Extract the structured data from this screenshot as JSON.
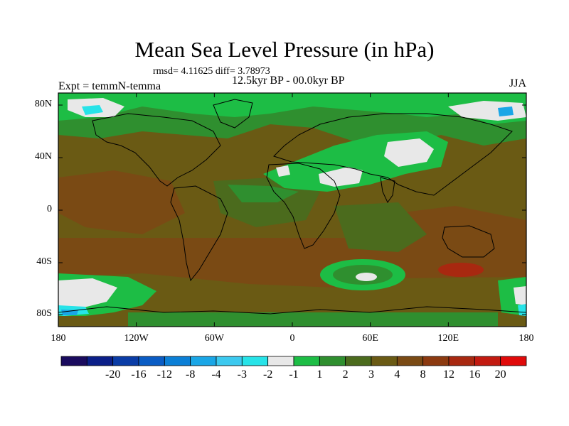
{
  "title": "Mean Sea Level Pressure (in hPa)",
  "stats": "rmsd= 4.11625  diff= 3.78973",
  "period": "12.5kyr BP - 00.0kyr BP",
  "experiment": "Expt = temmN-temma",
  "season": "JJA",
  "lat_ticks": [
    "80N",
    "40N",
    "0",
    "40S",
    "80S"
  ],
  "lon_ticks": [
    "180",
    "120W",
    "60W",
    "0",
    "60E",
    "120E",
    "180"
  ],
  "colorbar": {
    "colors": [
      "#1a0b5e",
      "#0b1f88",
      "#0a3ca6",
      "#0a5cc4",
      "#0b7fd6",
      "#1aa6e6",
      "#3cc9ef",
      "#27e3e8",
      "#e8e8e8",
      "#1dbd45",
      "#2f8f2f",
      "#4b6b1d",
      "#6a5a14",
      "#7a4a14",
      "#8c3a10",
      "#a82810",
      "#c21a10",
      "#e00a0a"
    ],
    "labels": [
      "-20",
      "-16",
      "-12",
      "-8",
      "-4",
      "-3",
      "-2",
      "-1",
      "1",
      "2",
      "3",
      "4",
      "8",
      "12",
      "16",
      "20"
    ]
  },
  "map_colors": {
    "background": "#6a5a14",
    "light_green": "#1dbd45",
    "mid_green": "#2f8f2f",
    "olive": "#4b6b1d",
    "brown": "#7a4a14",
    "white": "#e8e8e8",
    "cyan": "#27e3e8",
    "blue": "#1aa6e6",
    "red": "#a82810"
  }
}
